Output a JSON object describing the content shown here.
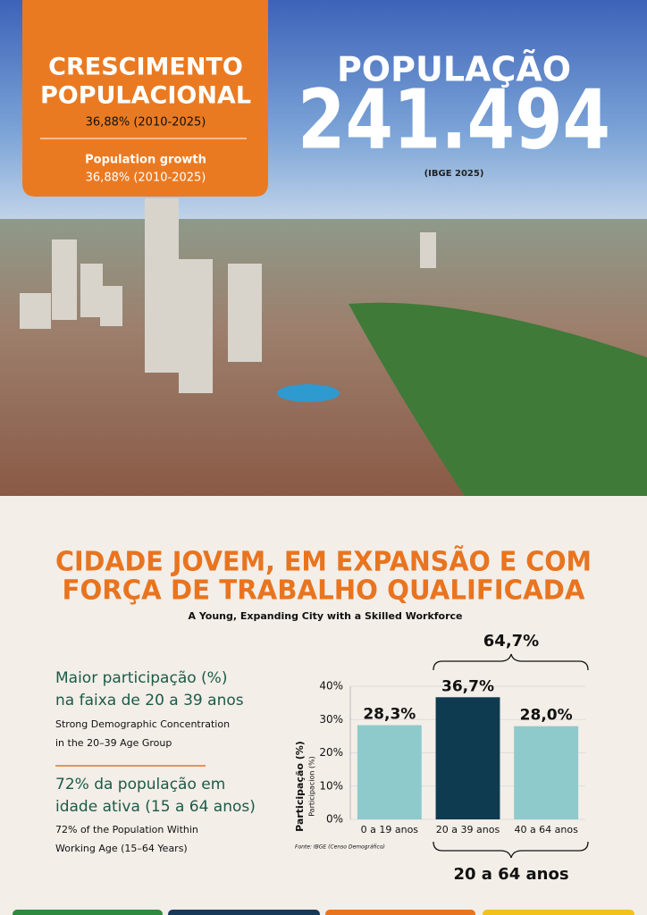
{
  "header": {
    "box_title_1": "CRESCIMENTO",
    "box_title_2": "POPULACIONAL",
    "box_rate": "36,88% (2010-2025)",
    "box_en_title": "Population growth",
    "box_en_rate": "36,88% (2010-2025)",
    "population_label": "POPULAÇÃO",
    "population_value": "241.494",
    "population_source": "(IBGE 2025)"
  },
  "section": {
    "title_1": "CIDADE JOVEM, EM EXPANSÃO E COM",
    "title_2": "FORÇA DE TRABALHO QUALIFICADA",
    "subtitle": "A Young, Expanding City with a Skilled Workforce"
  },
  "facts": [
    {
      "line_1": "Maior participação (%)",
      "line_2": "na faixa de 20 a 39 anos",
      "en_1": "Strong Demographic Concentration",
      "en_2": "in the 20–39 Age Group"
    },
    {
      "line_1": "72% da população em",
      "line_2": "idade ativa (15 a 64 anos)",
      "en_1": "72% of the Population Within",
      "en_2": "Working Age (15–64 Years)"
    }
  ],
  "chart_data": {
    "type": "bar",
    "ylabel": "Participação (%)",
    "ylabel_sub": "Participacion (%)",
    "source": "Fonte: IBGE (Censo Demográfico)",
    "categories": [
      "0 a 19 anos",
      "20 a 39 anos",
      "40 a 64 anos"
    ],
    "values": [
      28.3,
      36.7,
      28.0
    ],
    "value_labels": [
      "28,3%",
      "36,7%",
      "28,0%"
    ],
    "colors": [
      "#8ec9cc",
      "#0f3b50",
      "#8ec9cc"
    ],
    "ylim": [
      0,
      40
    ],
    "yticks": [
      {
        "value": 0,
        "label": "0%"
      },
      {
        "value": 10,
        "label": "10%"
      },
      {
        "value": 20,
        "label": "20%"
      },
      {
        "value": 30,
        "label": "30%"
      },
      {
        "value": 40,
        "label": "40%"
      }
    ],
    "grid": true,
    "annotations": [
      "64,7%",
      "20 a 64 anos"
    ]
  }
}
